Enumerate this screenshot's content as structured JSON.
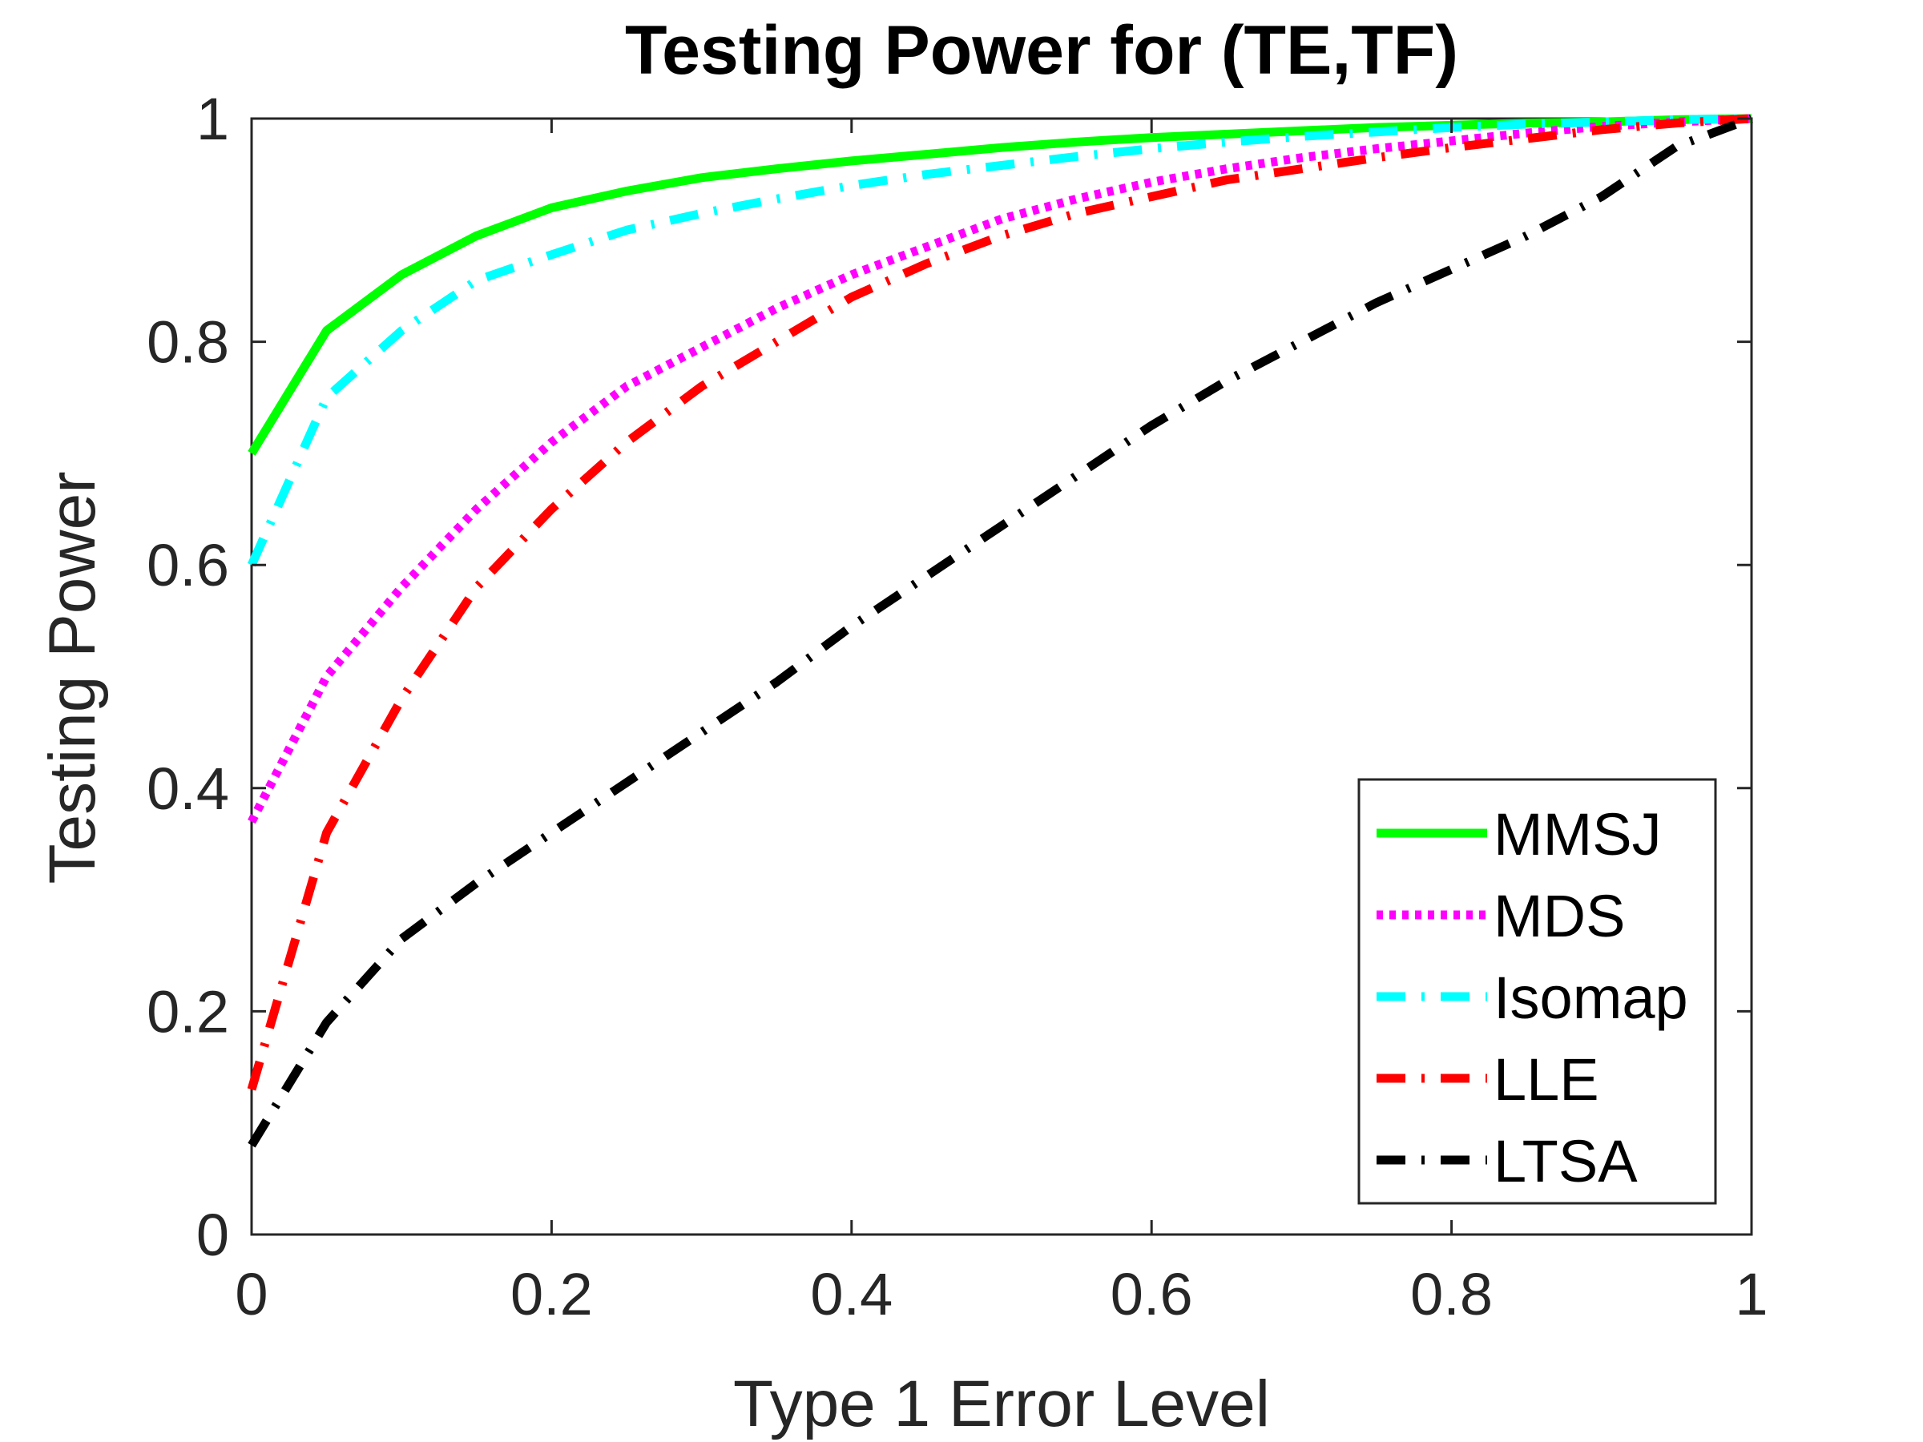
{
  "chart_data": {
    "type": "line",
    "title": "Testing Power for (TE,TF)",
    "xlabel": "Type 1 Error Level",
    "ylabel": "Testing Power",
    "xlim": [
      0,
      1
    ],
    "ylim": [
      0,
      1
    ],
    "xticks": [
      "0",
      "0.2",
      "0.4",
      "0.6",
      "0.8",
      "1"
    ],
    "yticks": [
      "0",
      "0.2",
      "0.4",
      "0.6",
      "0.8",
      "1"
    ],
    "grid": false,
    "legend_position": "bottom-right",
    "x": [
      0,
      0.05,
      0.1,
      0.15,
      0.2,
      0.25,
      0.3,
      0.35,
      0.4,
      0.45,
      0.5,
      0.55,
      0.6,
      0.65,
      0.7,
      0.75,
      0.8,
      0.85,
      0.9,
      0.95,
      1
    ],
    "series": [
      {
        "name": "MMSJ",
        "color": "#00ff00",
        "style": "solid",
        "values": [
          0.7,
          0.81,
          0.86,
          0.895,
          0.92,
          0.935,
          0.947,
          0.955,
          0.962,
          0.968,
          0.974,
          0.979,
          0.983,
          0.986,
          0.989,
          0.992,
          0.994,
          0.996,
          0.997,
          0.999,
          1.0
        ]
      },
      {
        "name": "MDS",
        "color": "#ff00ff",
        "style": "dotted",
        "values": [
          0.37,
          0.5,
          0.58,
          0.65,
          0.71,
          0.76,
          0.795,
          0.83,
          0.86,
          0.885,
          0.91,
          0.928,
          0.943,
          0.955,
          0.965,
          0.973,
          0.98,
          0.987,
          0.993,
          0.997,
          1.0
        ]
      },
      {
        "name": "Isomap",
        "color": "#00ffff",
        "style": "dash-dot",
        "values": [
          0.6,
          0.75,
          0.81,
          0.855,
          0.878,
          0.9,
          0.915,
          0.928,
          0.94,
          0.95,
          0.958,
          0.966,
          0.973,
          0.979,
          0.984,
          0.988,
          0.992,
          0.995,
          0.997,
          0.999,
          1.0
        ]
      },
      {
        "name": "LLE",
        "color": "#ff0000",
        "style": "dash-dot",
        "values": [
          0.13,
          0.36,
          0.48,
          0.58,
          0.65,
          0.71,
          0.76,
          0.8,
          0.84,
          0.87,
          0.895,
          0.915,
          0.93,
          0.945,
          0.955,
          0.965,
          0.974,
          0.982,
          0.99,
          0.996,
          1.0
        ]
      },
      {
        "name": "LTSA",
        "color": "#000000",
        "style": "dash-dot",
        "values": [
          0.08,
          0.19,
          0.265,
          0.315,
          0.36,
          0.405,
          0.45,
          0.495,
          0.545,
          0.59,
          0.635,
          0.68,
          0.725,
          0.765,
          0.8,
          0.835,
          0.865,
          0.895,
          0.93,
          0.975,
          1.0
        ]
      }
    ]
  }
}
